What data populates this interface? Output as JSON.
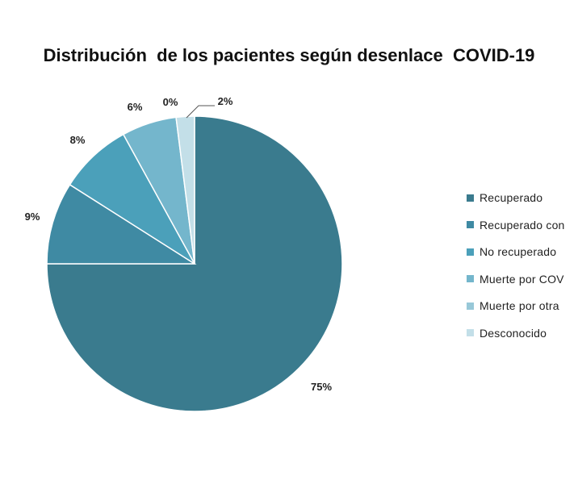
{
  "chart_data": {
    "type": "pie",
    "title": "Distribución  de los pacientes según desenlace  COVID-19",
    "slices": [
      {
        "name": "Recuperado",
        "value": 75,
        "label": "75%",
        "color": "#3a7b8e"
      },
      {
        "name": "Recuperado con",
        "value": 9,
        "label": "9%",
        "color": "#3f8aa3"
      },
      {
        "name": "No recuperado",
        "value": 8,
        "label": "8%",
        "color": "#4ba0ba"
      },
      {
        "name": "Muerte por COV",
        "value": 6,
        "label": "6%",
        "color": "#74b6cc"
      },
      {
        "name": "Muerte por otra",
        "value": 0,
        "label": "0%",
        "color": "#98c8d8"
      },
      {
        "name": "Desconocido",
        "value": 2,
        "label": "2%",
        "color": "#c3dfe8"
      }
    ],
    "legend_position": "right"
  }
}
